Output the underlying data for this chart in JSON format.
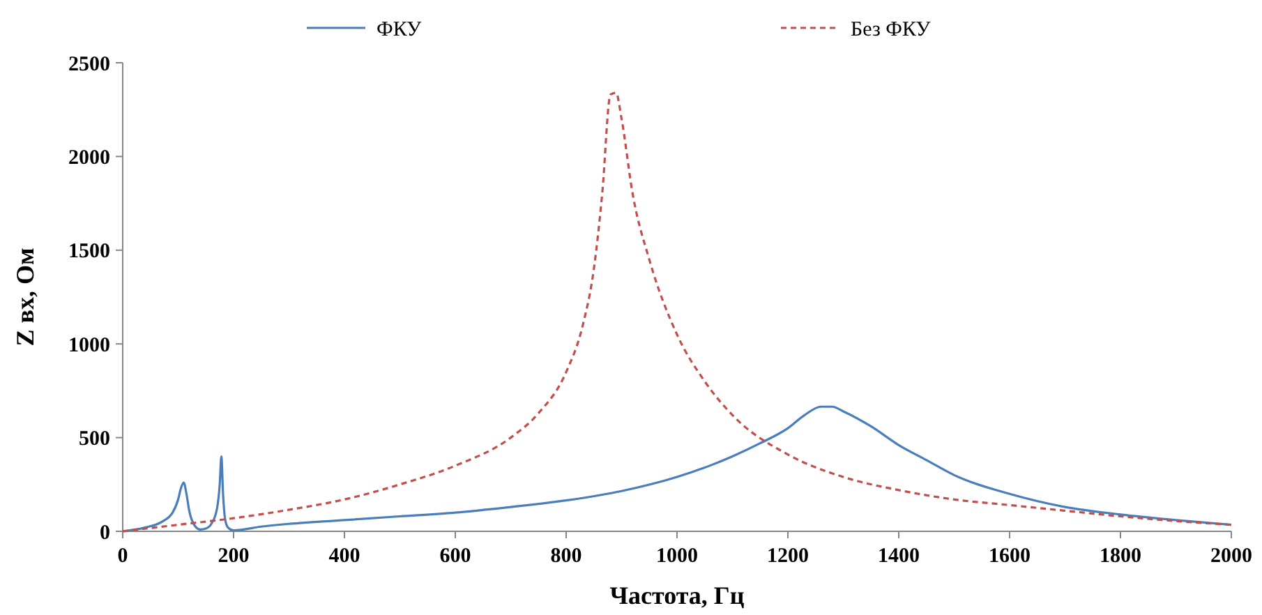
{
  "chart_data": {
    "type": "line",
    "xlabel": "Частота, Гц",
    "ylabel": "Z вх, Ом",
    "xlim": [
      0,
      2000
    ],
    "ylim": [
      0,
      2500
    ],
    "xticks": [
      0,
      200,
      400,
      600,
      800,
      1000,
      1200,
      1400,
      1600,
      1800,
      2000
    ],
    "yticks": [
      0,
      500,
      1000,
      1500,
      2000,
      2500
    ],
    "grid": false,
    "legend": "top",
    "marker": "none",
    "series": [
      {
        "name": "ФКУ",
        "color": "#4a7ebb",
        "line_style": "solid",
        "x": [
          0,
          40,
          70,
          90,
          100,
          105,
          110,
          115,
          120,
          130,
          140,
          150,
          160,
          170,
          175,
          178,
          181,
          185,
          190,
          200,
          250,
          300,
          400,
          500,
          600,
          700,
          800,
          900,
          1000,
          1050,
          1100,
          1150,
          1200,
          1230,
          1260,
          1280,
          1300,
          1350,
          1400,
          1450,
          1500,
          1600,
          1700,
          1800,
          1900,
          2000
        ],
        "values": [
          0,
          20,
          50,
          100,
          170,
          230,
          260,
          200,
          110,
          30,
          10,
          15,
          40,
          120,
          250,
          400,
          200,
          60,
          20,
          5,
          25,
          40,
          60,
          80,
          100,
          130,
          165,
          215,
          290,
          340,
          400,
          470,
          550,
          620,
          665,
          665,
          640,
          560,
          460,
          380,
          300,
          200,
          130,
          90,
          60,
          35
        ]
      },
      {
        "name": "Без ФКУ",
        "color": "#c0504d",
        "line_style": "dashed",
        "x": [
          0,
          100,
          200,
          300,
          400,
          500,
          600,
          700,
          750,
          800,
          830,
          850,
          865,
          880,
          890,
          900,
          920,
          950,
          1000,
          1050,
          1100,
          1200,
          1300,
          1400,
          1500,
          1600,
          1700,
          1800,
          1900,
          2000
        ],
        "values": [
          0,
          35,
          70,
          115,
          170,
          250,
          350,
          500,
          630,
          850,
          1100,
          1400,
          1800,
          2330,
          2340,
          2200,
          1800,
          1450,
          1050,
          800,
          620,
          410,
          290,
          220,
          170,
          140,
          110,
          80,
          55,
          35
        ]
      }
    ]
  }
}
